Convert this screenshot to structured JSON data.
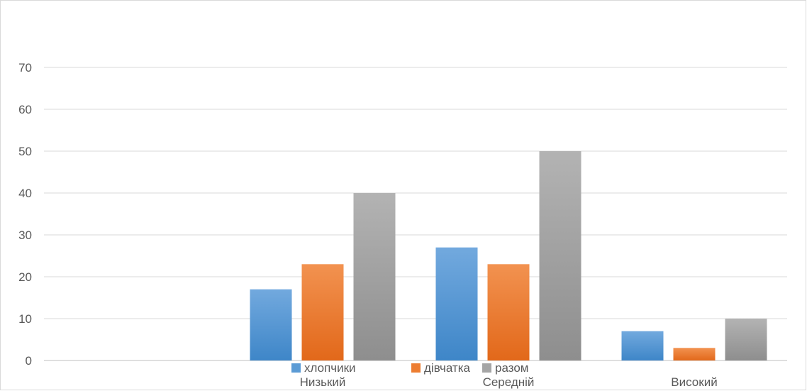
{
  "chart_data": {
    "type": "bar",
    "categories": [
      "",
      "Низький",
      "Середній",
      "Високий"
    ],
    "series": [
      {
        "name": "хлопчики",
        "values": [
          null,
          17,
          27,
          7
        ],
        "color": "#5b9bd5"
      },
      {
        "name": "дівчатка",
        "values": [
          null,
          23,
          23,
          3
        ],
        "color": "#ed7d31"
      },
      {
        "name": "разом",
        "values": [
          null,
          40,
          50,
          10
        ],
        "color": "#a5a5a5"
      }
    ],
    "yticks": [
      "0",
      "10",
      "20",
      "30",
      "40",
      "50",
      "60",
      "70"
    ],
    "ylim": [
      0,
      80
    ],
    "grid": true,
    "legend_position": "bottom"
  }
}
